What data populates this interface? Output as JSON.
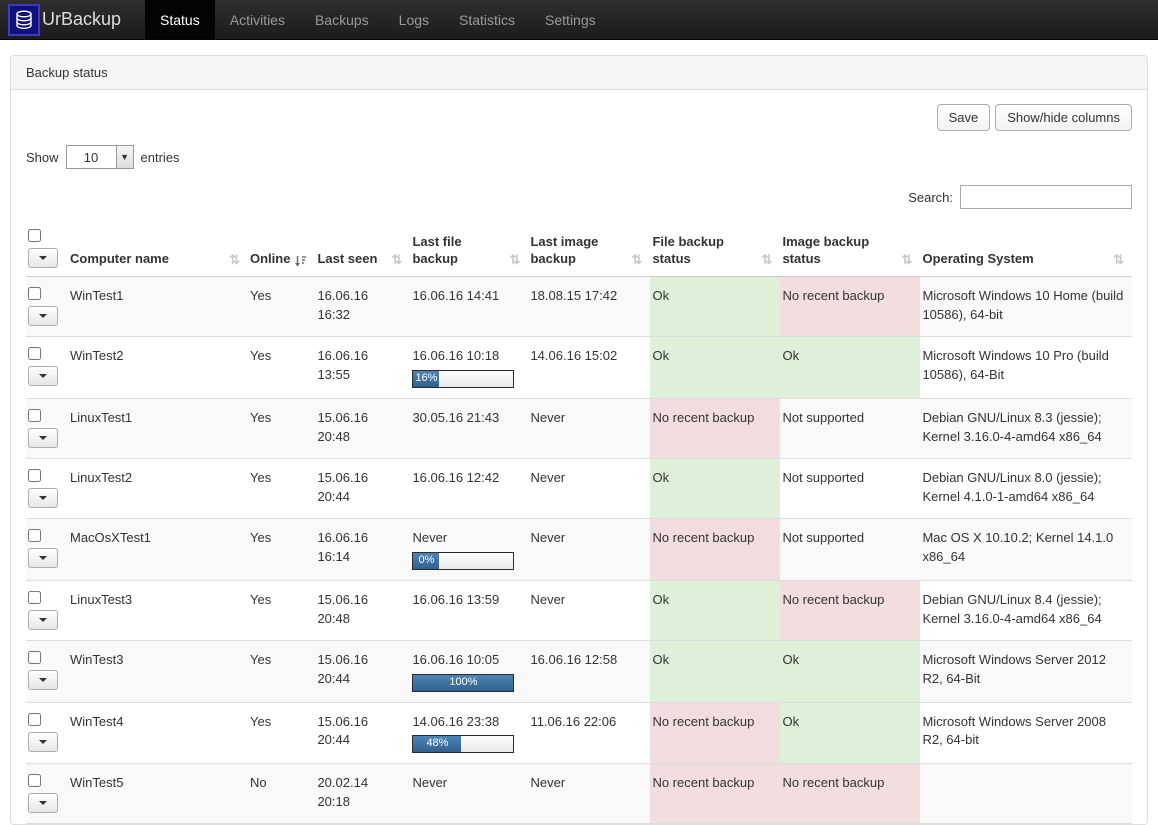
{
  "navbar": {
    "brand": "UrBackup",
    "items": [
      {
        "label": "Status",
        "active": true
      },
      {
        "label": "Activities",
        "active": false
      },
      {
        "label": "Backups",
        "active": false
      },
      {
        "label": "Logs",
        "active": false
      },
      {
        "label": "Statistics",
        "active": false
      },
      {
        "label": "Settings",
        "active": false
      }
    ]
  },
  "panel": {
    "title": "Backup status"
  },
  "toolbar": {
    "save": "Save",
    "show_hide_columns": "Show/hide columns",
    "show_label": "Show",
    "page_size": "10",
    "entries_label": "entries",
    "search_label": "Search:",
    "search_value": ""
  },
  "colors": {
    "status_ok_bg": "#dff0d8",
    "status_bad_bg": "#f2dede",
    "progress_fill": "#31608f",
    "navbar_bg": "#222222",
    "logo_bg": "#10107a"
  },
  "table": {
    "columns": [
      {
        "label": "Computer name",
        "sort": "both"
      },
      {
        "label": "Online",
        "sort": "active"
      },
      {
        "label": "Last seen",
        "sort": "both"
      },
      {
        "label": "Last file backup",
        "sort": "both"
      },
      {
        "label": "Last image backup",
        "sort": "both"
      },
      {
        "label": "File backup status",
        "sort": "both"
      },
      {
        "label": "Image backup status",
        "sort": "both"
      },
      {
        "label": "Operating System",
        "sort": "both"
      }
    ],
    "rows": [
      {
        "computer_name": "WinTest1",
        "online": "Yes",
        "last_seen": "16.06.16 16:32",
        "last_file_backup": "16.06.16 14:41",
        "file_progress": null,
        "last_image_backup": "18.08.15 17:42",
        "file_status": {
          "text": "Ok",
          "type": "ok"
        },
        "image_status": {
          "text": "No recent backup",
          "type": "bad"
        },
        "os": "Microsoft Windows 10 Home (build 10586), 64-bit"
      },
      {
        "computer_name": "WinTest2",
        "online": "Yes",
        "last_seen": "16.06.16 13:55",
        "last_file_backup": "16.06.16 10:18",
        "file_progress": {
          "percent": 16,
          "label": "16%"
        },
        "last_image_backup": "14.06.16 15:02",
        "file_status": {
          "text": "Ok",
          "type": "ok"
        },
        "image_status": {
          "text": "Ok",
          "type": "ok"
        },
        "os": "Microsoft Windows 10 Pro (build 10586), 64-Bit"
      },
      {
        "computer_name": "LinuxTest1",
        "online": "Yes",
        "last_seen": "15.06.16 20:48",
        "last_file_backup": "30.05.16 21:43",
        "file_progress": null,
        "last_image_backup": "Never",
        "file_status": {
          "text": "No recent backup",
          "type": "bad"
        },
        "image_status": {
          "text": "Not supported",
          "type": "none"
        },
        "os": "Debian GNU/Linux 8.3 (jessie); Kernel 3.16.0-4-amd64 x86_64"
      },
      {
        "computer_name": "LinuxTest2",
        "online": "Yes",
        "last_seen": "15.06.16 20:44",
        "last_file_backup": "16.06.16 12:42",
        "file_progress": null,
        "last_image_backup": "Never",
        "file_status": {
          "text": "Ok",
          "type": "ok"
        },
        "image_status": {
          "text": "Not supported",
          "type": "none"
        },
        "os": "Debian GNU/Linux 8.0 (jessie); Kernel 4.1.0-1-amd64 x86_64"
      },
      {
        "computer_name": "MacOsXTest1",
        "online": "Yes",
        "last_seen": "16.06.16 16:14",
        "last_file_backup": "Never",
        "file_progress": {
          "percent": 0,
          "label": "0%"
        },
        "last_image_backup": "Never",
        "file_status": {
          "text": "No recent backup",
          "type": "bad"
        },
        "image_status": {
          "text": "Not supported",
          "type": "none"
        },
        "os": "Mac OS X 10.10.2; Kernel 14.1.0 x86_64"
      },
      {
        "computer_name": "LinuxTest3",
        "online": "Yes",
        "last_seen": "15.06.16 20:48",
        "last_file_backup": "16.06.16 13:59",
        "file_progress": null,
        "last_image_backup": "Never",
        "file_status": {
          "text": "Ok",
          "type": "ok"
        },
        "image_status": {
          "text": "No recent backup",
          "type": "bad"
        },
        "os": "Debian GNU/Linux 8.4 (jessie); Kernel 3.16.0-4-amd64 x86_64"
      },
      {
        "computer_name": "WinTest3",
        "online": "Yes",
        "last_seen": "15.06.16 20:44",
        "last_file_backup": "16.06.16 10:05",
        "file_progress": {
          "percent": 100,
          "label": "100%"
        },
        "last_image_backup": "16.06.16 12:58",
        "file_status": {
          "text": "Ok",
          "type": "ok"
        },
        "image_status": {
          "text": "Ok",
          "type": "ok"
        },
        "os": "Microsoft Windows Server 2012 R2, 64-Bit"
      },
      {
        "computer_name": "WinTest4",
        "online": "Yes",
        "last_seen": "15.06.16 20:44",
        "last_file_backup": "14.06.16 23:38",
        "file_progress": {
          "percent": 48,
          "label": "48%"
        },
        "last_image_backup": "11.06.16 22:06",
        "file_status": {
          "text": "No recent backup",
          "type": "bad"
        },
        "image_status": {
          "text": "Ok",
          "type": "ok"
        },
        "os": "Microsoft Windows Server 2008 R2, 64-bit"
      },
      {
        "computer_name": "WinTest5",
        "online": "No",
        "last_seen": "20.02.14 20:18",
        "last_file_backup": "Never",
        "file_progress": null,
        "last_image_backup": "Never",
        "file_status": {
          "text": "No recent backup",
          "type": "bad"
        },
        "image_status": {
          "text": "No recent backup",
          "type": "bad"
        },
        "os": ""
      }
    ]
  }
}
